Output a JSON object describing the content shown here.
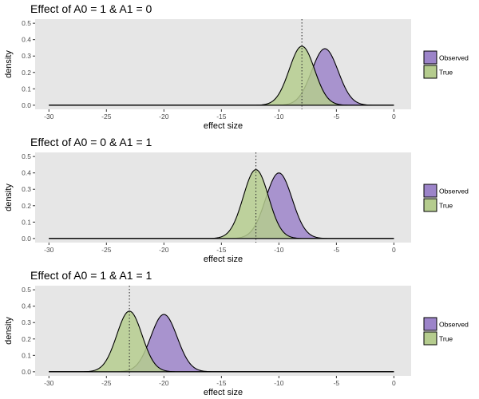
{
  "chart_data": [
    {
      "type": "area",
      "title": "Effect of A0 = 1 & A1 = 0",
      "xlabel": "effect size",
      "ylabel": "density",
      "xlim": [
        -31.2,
        1.5
      ],
      "ylim": [
        -0.025,
        0.525
      ],
      "x_ticks": [
        -30,
        -25,
        -20,
        -15,
        -10,
        -5,
        0
      ],
      "y_ticks": [
        0.0,
        0.1,
        0.2,
        0.3,
        0.4,
        0.5
      ],
      "vline": -8.0,
      "grid": false,
      "legend_position": "right",
      "series": [
        {
          "name": "Observed",
          "color": "#9c84c9",
          "mean": -6.0,
          "sd": 1.15,
          "peak": 0.345
        },
        {
          "name": "True",
          "color": "#b5cc8e",
          "mean": -8.0,
          "sd": 1.1,
          "peak": 0.36
        }
      ]
    },
    {
      "type": "area",
      "title": "Effect of A0 = 0 & A1 = 1",
      "xlabel": "effect size",
      "ylabel": "density",
      "xlim": [
        -31.2,
        1.5
      ],
      "ylim": [
        -0.025,
        0.525
      ],
      "x_ticks": [
        -30,
        -25,
        -20,
        -15,
        -10,
        -5,
        0
      ],
      "y_ticks": [
        0.0,
        0.1,
        0.2,
        0.3,
        0.4,
        0.5
      ],
      "vline": -12.0,
      "grid": false,
      "legend_position": "right",
      "series": [
        {
          "name": "Observed",
          "color": "#9c84c9",
          "mean": -10.0,
          "sd": 1.15,
          "peak": 0.4
        },
        {
          "name": "True",
          "color": "#b5cc8e",
          "mean": -12.0,
          "sd": 1.1,
          "peak": 0.42
        }
      ]
    },
    {
      "type": "area",
      "title": "Effect of A0 = 1 & A1 = 1",
      "xlabel": "effect size",
      "ylabel": "density",
      "xlim": [
        -31.2,
        1.5
      ],
      "ylim": [
        -0.025,
        0.525
      ],
      "x_ticks": [
        -30,
        -25,
        -20,
        -15,
        -10,
        -5,
        0
      ],
      "y_ticks": [
        0.0,
        0.1,
        0.2,
        0.3,
        0.4,
        0.5
      ],
      "vline": -23.0,
      "grid": false,
      "legend_position": "right",
      "series": [
        {
          "name": "Observed",
          "color": "#9c84c9",
          "mean": -20.0,
          "sd": 1.15,
          "peak": 0.35
        },
        {
          "name": "True",
          "color": "#b5cc8e",
          "mean": -23.0,
          "sd": 1.1,
          "peak": 0.37
        }
      ]
    }
  ]
}
